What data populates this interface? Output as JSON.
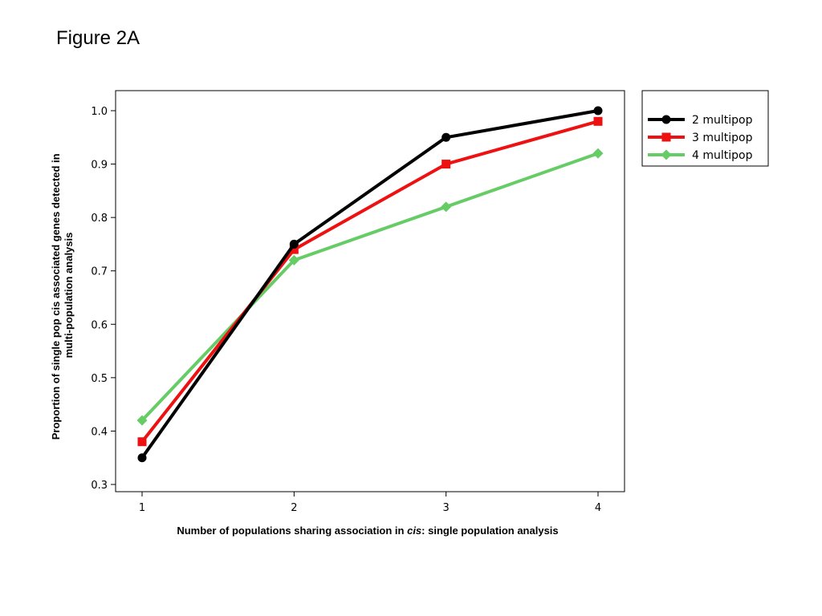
{
  "figure_title": "Figure 2A",
  "chart_data": {
    "type": "line",
    "x": [
      1,
      2,
      3,
      4
    ],
    "xticks": [
      "1",
      "2",
      "3",
      "4"
    ],
    "yticks": [
      "0.3",
      "0.4",
      "0.5",
      "0.6",
      "0.7",
      "0.8",
      "0.9",
      "1.0"
    ],
    "ylim": [
      0.3,
      1.0
    ],
    "xlim": [
      1,
      4
    ],
    "xlabel_parts": [
      "Number of populations sharing association in ",
      "cis",
      ": single population analysis"
    ],
    "ylabel_lines": [
      "Proportion of single pop cis associated genes detected in",
      "multi-population analysis"
    ],
    "grid": false,
    "legend_position": "outside-right-top",
    "series": [
      {
        "name": "2 multipop",
        "values": [
          0.35,
          0.75,
          0.95,
          1.0
        ],
        "color": "#000000",
        "marker": "circle"
      },
      {
        "name": "3 multipop",
        "values": [
          0.38,
          0.74,
          0.9,
          0.98
        ],
        "color": "#ee1111",
        "marker": "square"
      },
      {
        "name": "4 multipop",
        "values": [
          0.42,
          0.72,
          0.82,
          0.92
        ],
        "color": "#66cc66",
        "marker": "diamond"
      }
    ]
  }
}
